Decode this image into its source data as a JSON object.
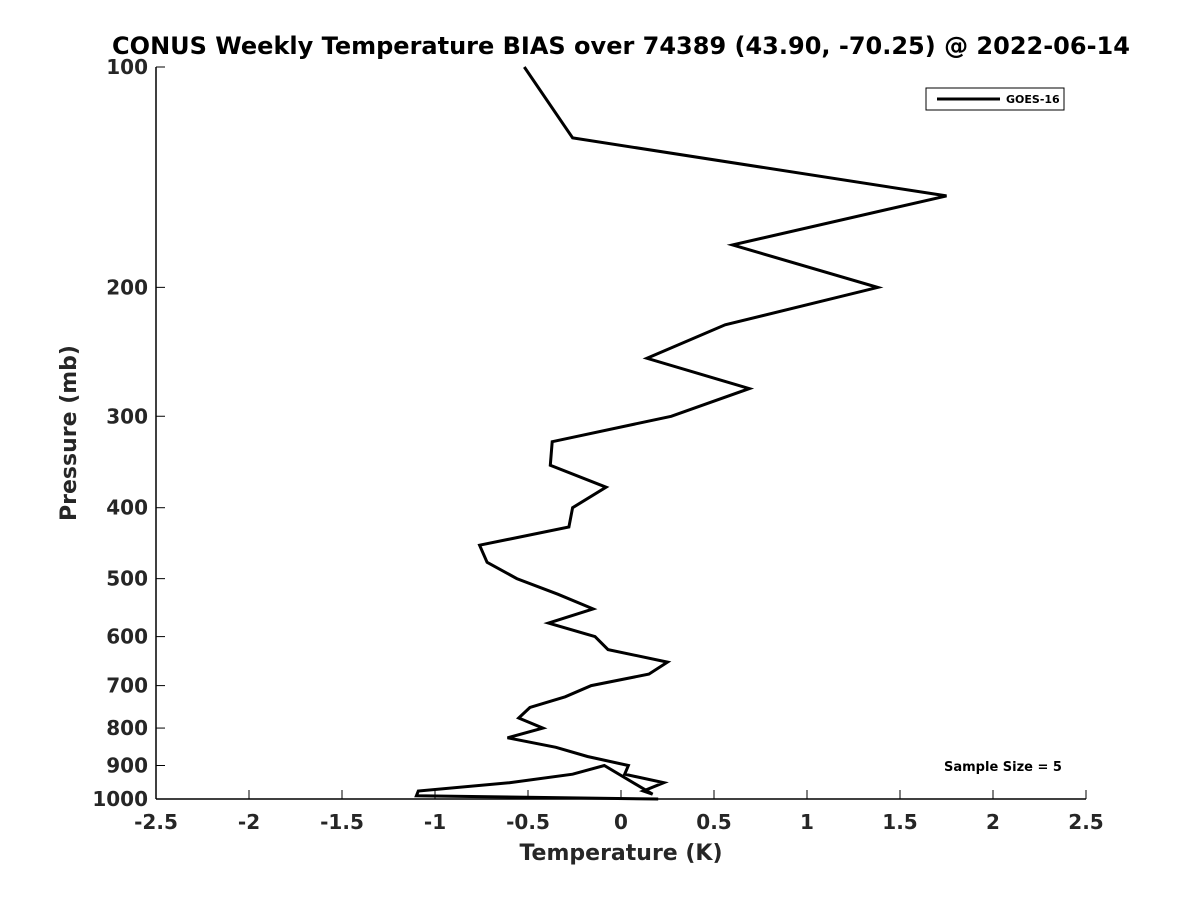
{
  "chart_data": {
    "type": "line",
    "title": "CONUS Weekly Temperature BIAS over 74389 (43.90, -70.25) @ 2022-06-14",
    "xlabel": "Temperature (K)",
    "ylabel": "Pressure (mb)",
    "xlim": [
      -2.5,
      2.5
    ],
    "ylim": [
      100,
      1000
    ],
    "y_scale": "log",
    "y_reversed": true,
    "x_ticks": [
      "-2.5",
      "-2",
      "-1.5",
      "-1",
      "-0.5",
      "0",
      "0.5",
      "1",
      "1.5",
      "2",
      "2.5"
    ],
    "x_tick_values": [
      -2.5,
      -2,
      -1.5,
      -1,
      -0.5,
      0,
      0.5,
      1,
      1.5,
      2,
      2.5
    ],
    "y_ticks": [
      "100",
      "200",
      "300",
      "400",
      "500",
      "600",
      "700",
      "800",
      "900",
      "1000"
    ],
    "y_tick_values": [
      100,
      200,
      300,
      400,
      500,
      600,
      700,
      800,
      900,
      1000
    ],
    "grid": false,
    "legend_position": "top-right",
    "annotation": "Sample Size = 5",
    "series": [
      {
        "name": "GOES-16",
        "color": "#000000",
        "points": [
          {
            "x": -0.52,
            "y": 100
          },
          {
            "x": -0.26,
            "y": 125
          },
          {
            "x": 1.75,
            "y": 150
          },
          {
            "x": 0.6,
            "y": 175
          },
          {
            "x": 1.38,
            "y": 200
          },
          {
            "x": 0.56,
            "y": 225
          },
          {
            "x": 0.14,
            "y": 250
          },
          {
            "x": 0.69,
            "y": 275
          },
          {
            "x": 0.27,
            "y": 300
          },
          {
            "x": -0.37,
            "y": 325
          },
          {
            "x": -0.38,
            "y": 350
          },
          {
            "x": -0.08,
            "y": 375
          },
          {
            "x": -0.26,
            "y": 400
          },
          {
            "x": -0.28,
            "y": 425
          },
          {
            "x": -0.76,
            "y": 450
          },
          {
            "x": -0.72,
            "y": 475
          },
          {
            "x": -0.56,
            "y": 500
          },
          {
            "x": -0.34,
            "y": 525
          },
          {
            "x": -0.15,
            "y": 550
          },
          {
            "x": -0.39,
            "y": 575
          },
          {
            "x": -0.14,
            "y": 600
          },
          {
            "x": -0.07,
            "y": 625
          },
          {
            "x": 0.25,
            "y": 650
          },
          {
            "x": 0.15,
            "y": 675
          },
          {
            "x": -0.16,
            "y": 700
          },
          {
            "x": -0.3,
            "y": 725
          },
          {
            "x": -0.49,
            "y": 750
          },
          {
            "x": -0.55,
            "y": 775
          },
          {
            "x": -0.42,
            "y": 800
          },
          {
            "x": -0.61,
            "y": 825
          },
          {
            "x": -0.35,
            "y": 850
          },
          {
            "x": -0.18,
            "y": 875
          },
          {
            "x": 0.04,
            "y": 900
          },
          {
            "x": 0.02,
            "y": 925
          },
          {
            "x": 0.23,
            "y": 950
          },
          {
            "x": 0.12,
            "y": 975
          },
          {
            "x": 0.17,
            "y": 985
          },
          {
            "x": -0.09,
            "y": 900
          },
          {
            "x": -0.26,
            "y": 925
          },
          {
            "x": -0.6,
            "y": 950
          },
          {
            "x": -1.09,
            "y": 975
          },
          {
            "x": -1.1,
            "y": 990
          },
          {
            "x": 0.2,
            "y": 1000
          }
        ]
      }
    ]
  }
}
